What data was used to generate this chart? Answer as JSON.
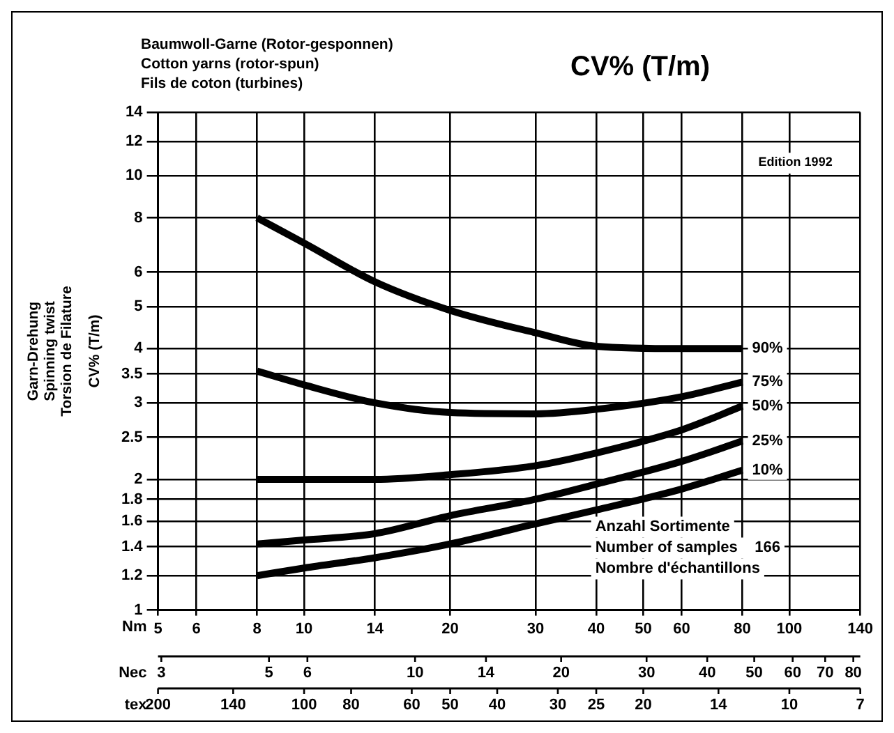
{
  "chart_data": {
    "type": "line",
    "title": "CV% (T/m)",
    "subtitle": "Baumwoll-Garne   (Rotor-gesponnen)\nCotton  yarns (rotor-spun)\nFils de coton  (turbines)",
    "ylabel": "Garn-Drehung\nSpinning twist\nTorsion de Filature\n\nCV%   (T/m)",
    "xlabel": "Nm",
    "xlim": [
      5,
      140
    ],
    "xticks": [
      5,
      6,
      8,
      10,
      14,
      20,
      30,
      40,
      50,
      60,
      80,
      100,
      140
    ],
    "log": "xy",
    "ylim": [
      1,
      14
    ],
    "yticks": [
      1,
      1.2,
      1.4,
      1.6,
      1.8,
      2,
      2.5,
      3,
      3.5,
      4,
      5,
      6,
      8,
      10,
      12,
      14
    ],
    "grid": true,
    "legend": false,
    "marker": "none",
    "line_style": "solid",
    "x": [
      8,
      10,
      14,
      20,
      30,
      40,
      60,
      80
    ],
    "series": [
      {
        "name": "90%",
        "color": "#000000",
        "values": [
          8.0,
          7.0,
          5.7,
          4.9,
          4.35,
          4.05,
          4.0,
          4.0
        ]
      },
      {
        "name": "75%",
        "color": "#000000",
        "values": [
          3.55,
          3.3,
          3.0,
          2.85,
          2.83,
          2.9,
          3.1,
          3.35
        ]
      },
      {
        "name": "50%",
        "color": "#000000",
        "values": [
          2.0,
          2.0,
          2.0,
          2.05,
          2.15,
          2.3,
          2.6,
          2.95
        ]
      },
      {
        "name": "25%",
        "color": "#000000",
        "values": [
          1.42,
          1.45,
          1.5,
          1.65,
          1.8,
          1.95,
          2.2,
          2.45
        ]
      },
      {
        "name": "10%",
        "color": "#000000",
        "values": [
          1.2,
          1.25,
          1.32,
          1.42,
          1.58,
          1.7,
          1.9,
          2.1
        ]
      }
    ],
    "annotations": [
      "Edition 1992",
      "Anzahl Sortimente",
      "Number of samples    166",
      "Nombre d'échantillons",
      "Nec",
      "3",
      "5",
      "6",
      "10",
      "14",
      "20",
      "30",
      "40",
      "50",
      "60",
      "70",
      "80",
      "tex",
      "200",
      "140",
      "100",
      "80",
      "60",
      "50",
      "40",
      "30",
      "25",
      "20",
      "14",
      "10",
      "7"
    ]
  }
}
